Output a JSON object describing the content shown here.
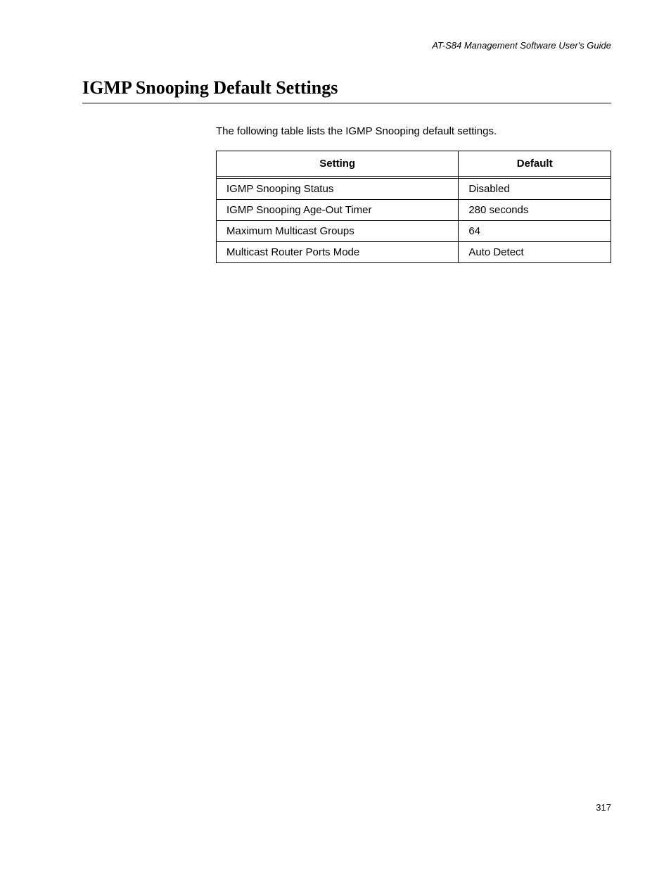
{
  "header": {
    "guide_title": "AT-S84 Management Software User's Guide"
  },
  "section": {
    "title": "IGMP Snooping Default Settings",
    "intro": "The following table lists the IGMP Snooping default settings."
  },
  "table": {
    "columns": [
      "Setting",
      "Default"
    ],
    "rows": [
      [
        "IGMP Snooping Status",
        "Disabled"
      ],
      [
        "IGMP Snooping Age-Out Timer",
        "280 seconds"
      ],
      [
        "Maximum Multicast Groups",
        "64"
      ],
      [
        "Multicast Router Ports Mode",
        "Auto Detect"
      ]
    ]
  },
  "footer": {
    "page_number": "317"
  }
}
